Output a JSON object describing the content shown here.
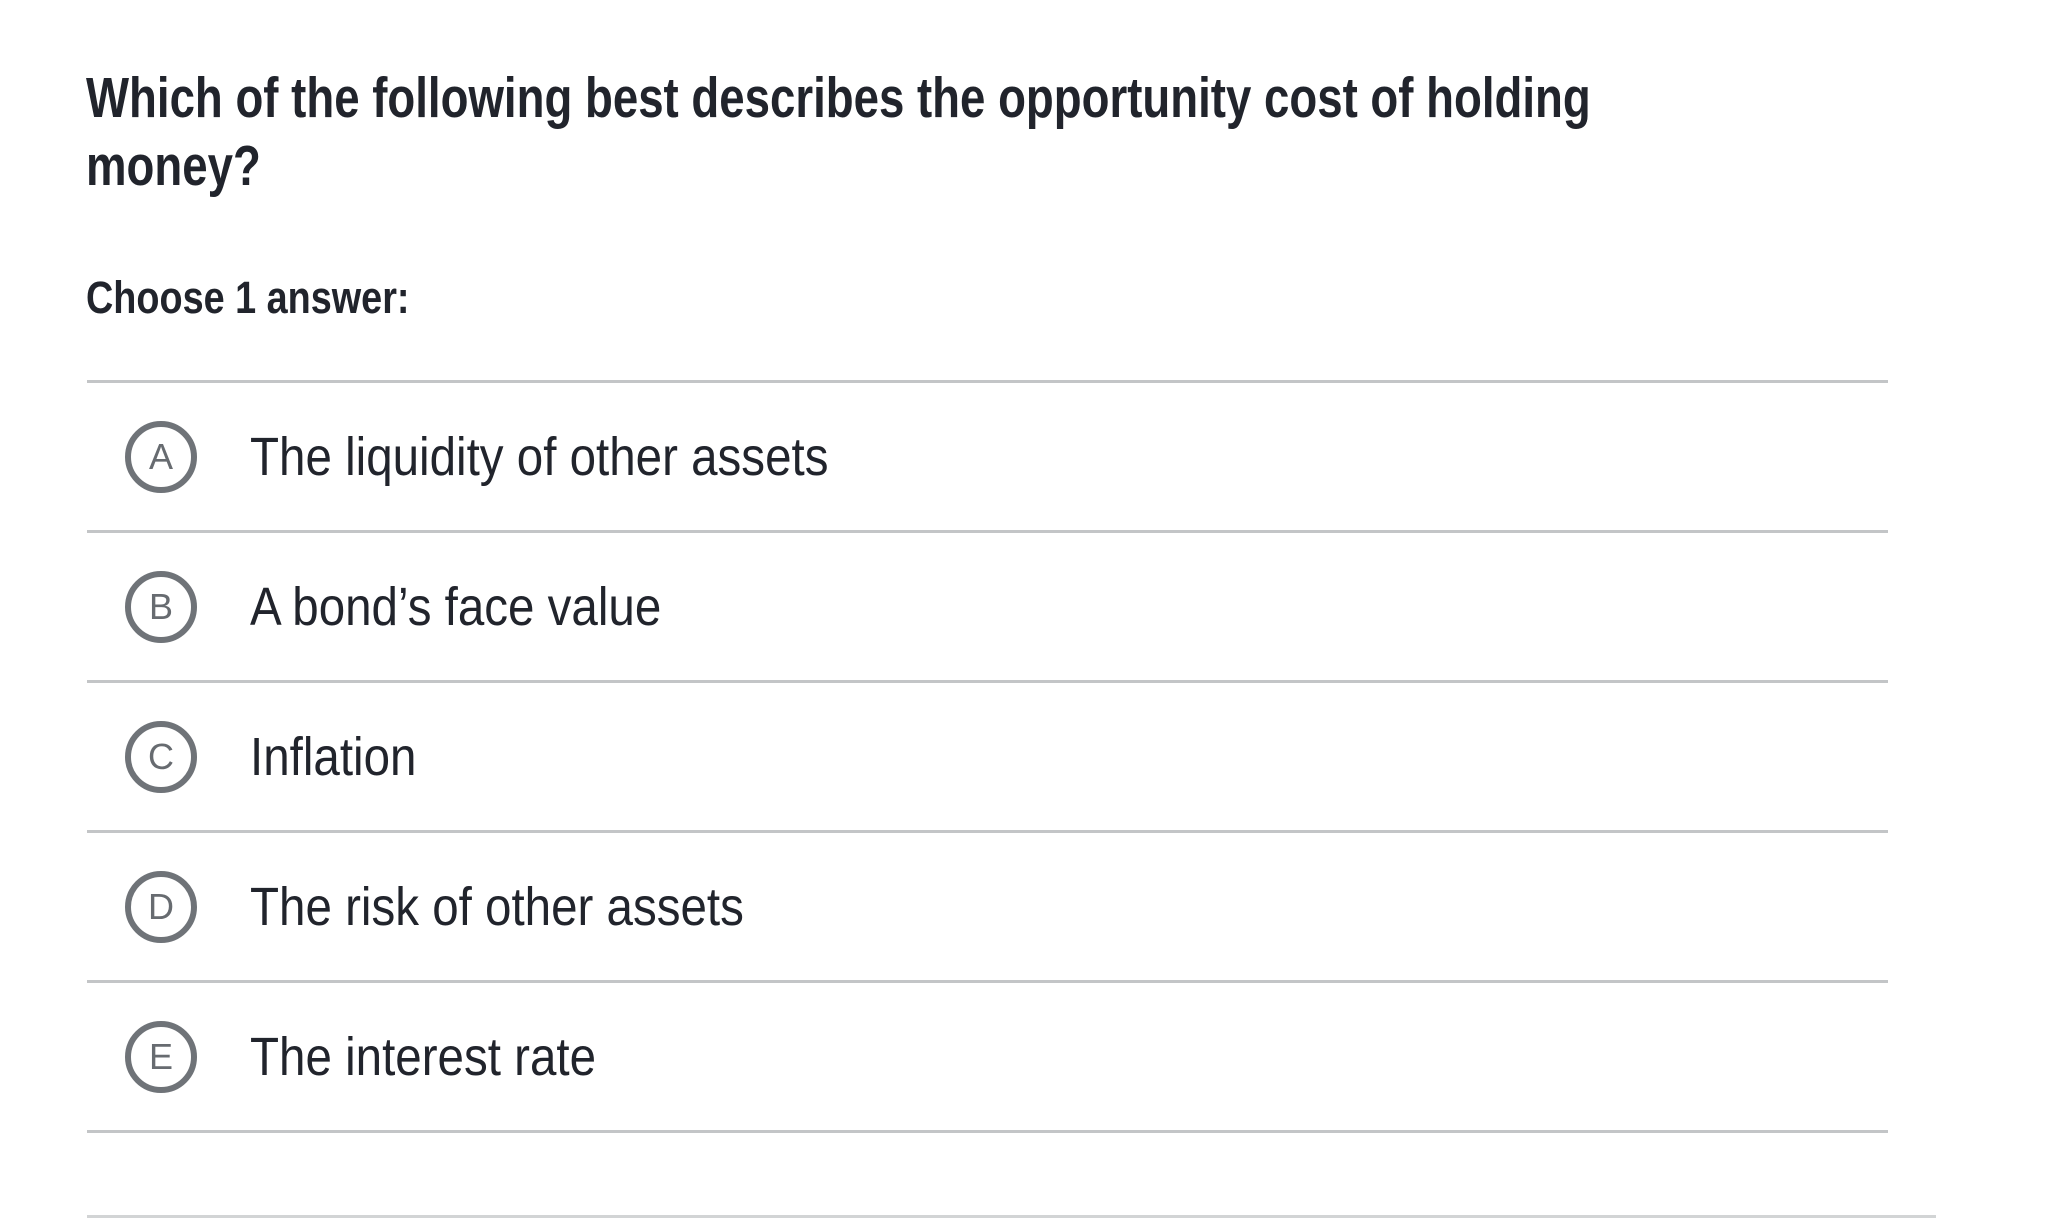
{
  "question": {
    "title_lines": [
      "Which of the following best describes the opportunity cost of holding",
      "money?"
    ],
    "prompt": "Choose 1 answer:"
  },
  "choices": [
    {
      "letter": "A",
      "label": "The liquidity of other assets"
    },
    {
      "letter": "B",
      "label": "A bond’s face value"
    },
    {
      "letter": "C",
      "label": "Inflation"
    },
    {
      "letter": "D",
      "label": "The risk of other assets"
    },
    {
      "letter": "E",
      "label": "The interest rate"
    }
  ],
  "colors": {
    "text": "#21242c",
    "radio_ring": "#6f7378",
    "radio_letter": "#676b70",
    "divider": "#c3c5c7",
    "bottom_rule": "#d2d4d5",
    "background": "#ffffff"
  }
}
